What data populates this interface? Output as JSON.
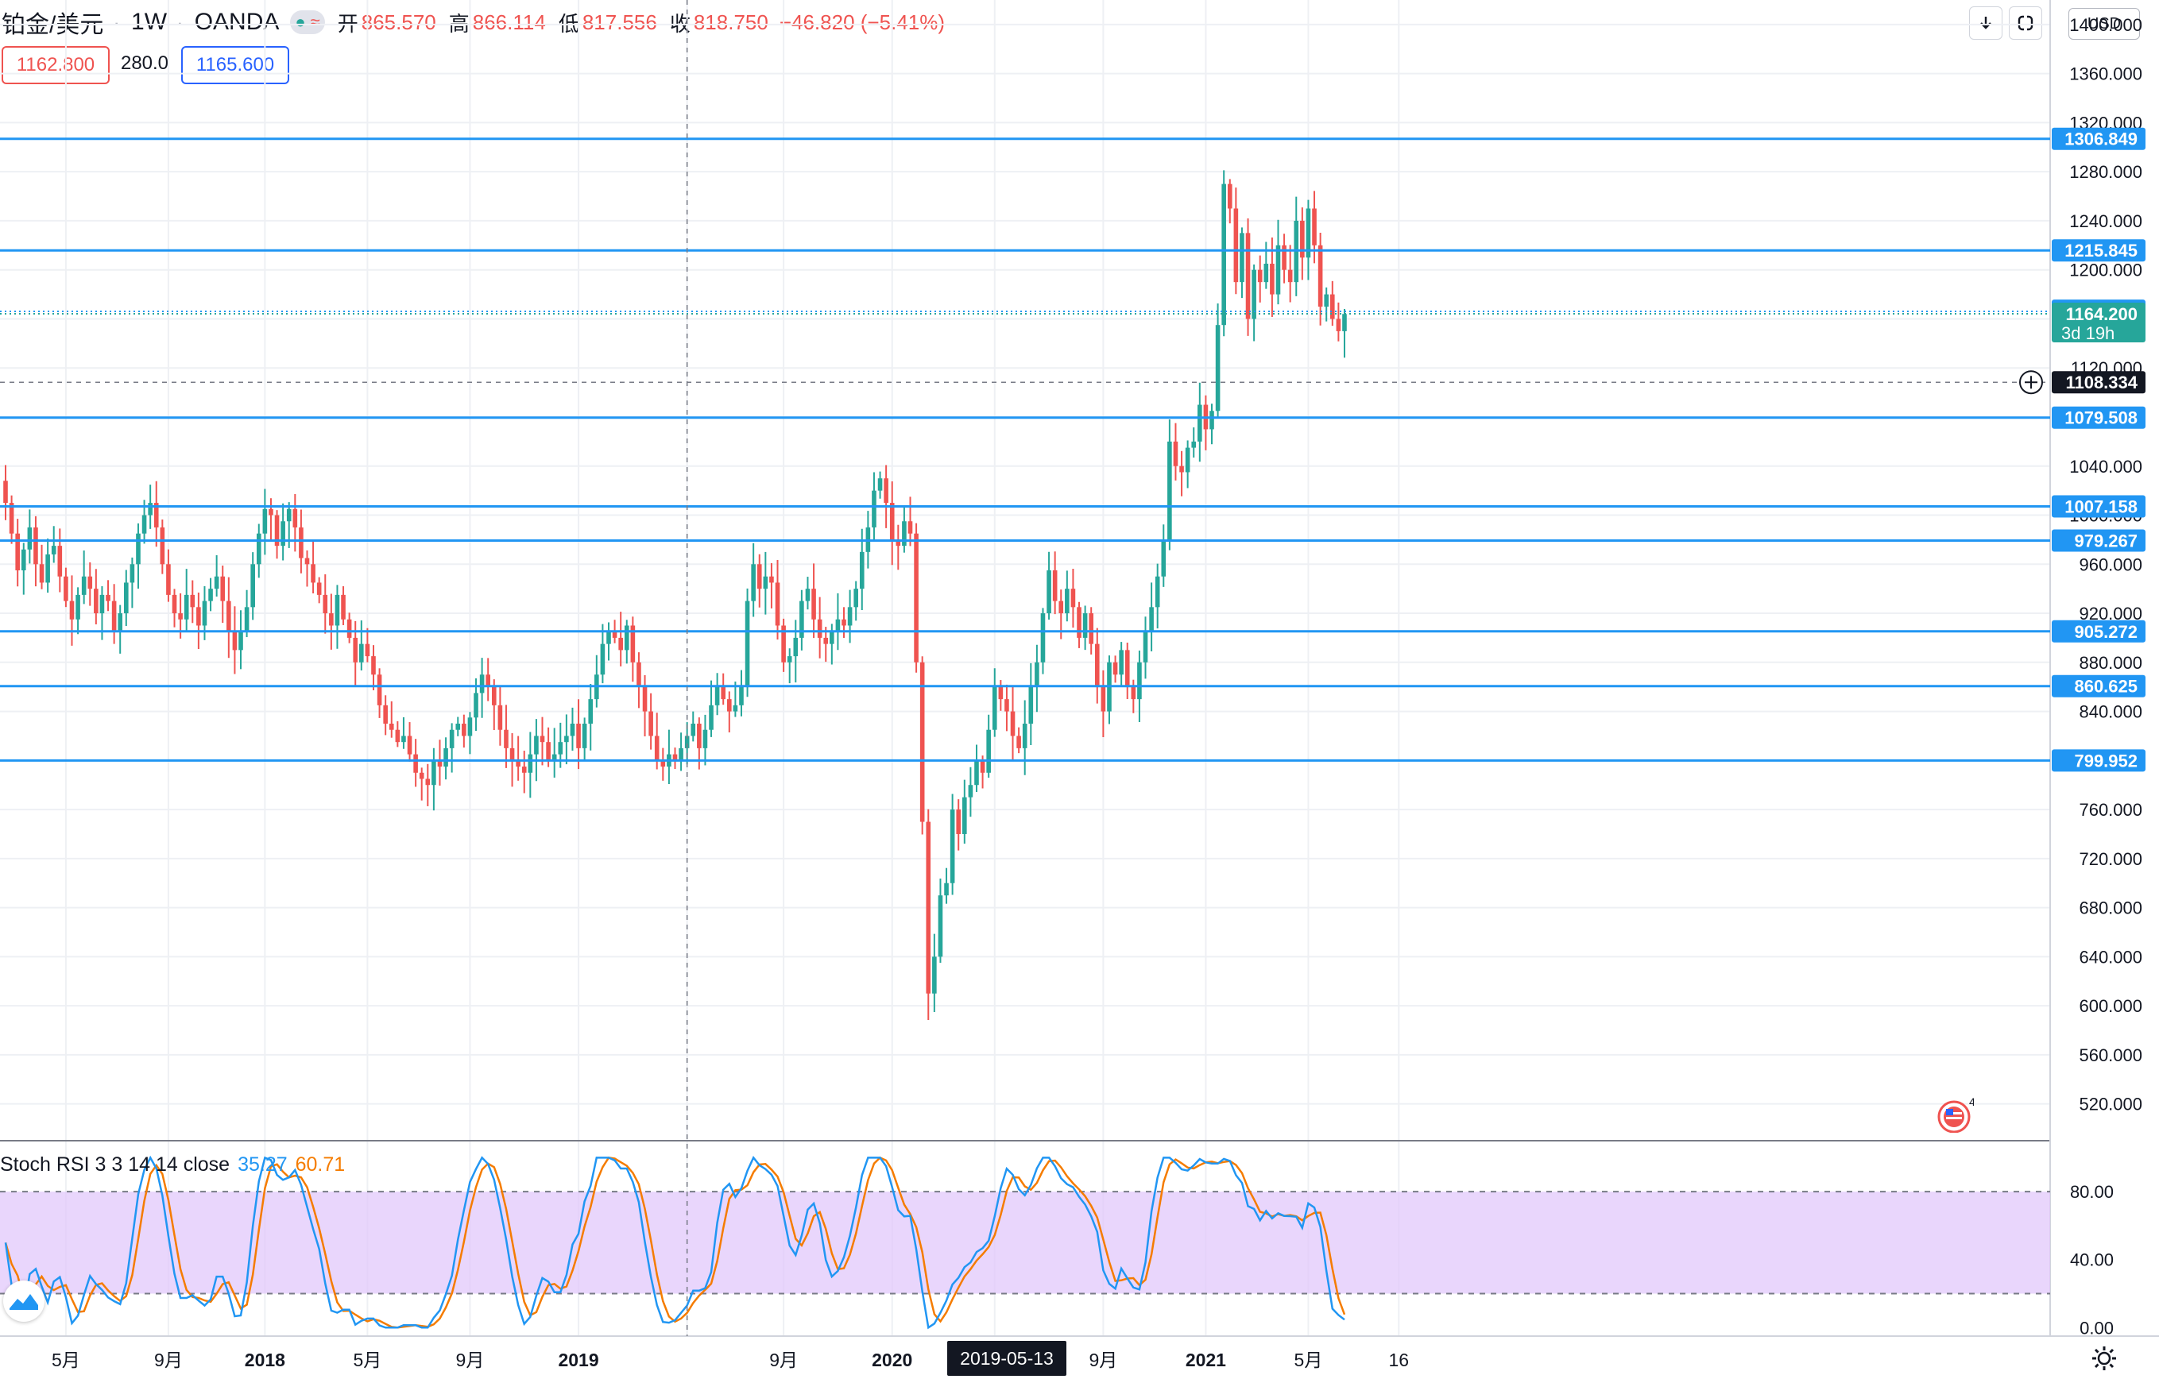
{
  "legend": {
    "symbol": "铂金/美元",
    "interval": "1W",
    "broker": "OANDA",
    "tag_icons": [
      "circle-icon",
      "wave-icon"
    ],
    "ohlc": [
      {
        "key": "开",
        "value": "865.570"
      },
      {
        "key": "高",
        "value": "866.114"
      },
      {
        "key": "低",
        "value": "817.556"
      },
      {
        "key": "收",
        "value": "818.750"
      }
    ],
    "change": "−46.820 (−5.41%)",
    "bid": "1162.800",
    "spread": "280.0",
    "ask": "1165.600"
  },
  "toolbar": {
    "download_icon": "arrow-down-icon",
    "fullscreen_icon": "fullscreen-icon",
    "currency": "USD"
  },
  "colors": {
    "up": "#26a69a",
    "down": "#ef5350",
    "hline": "#2196f3",
    "stoch_k": "#2196f3",
    "stoch_d": "#f57c00",
    "band": "#e1c8fb",
    "last": "#26a69a"
  },
  "chart_data": [
    {
      "type": "candlestick",
      "title": "铂金/美元 · 1W · OANDA",
      "ylim": [
        490,
        1420
      ],
      "y_ticks": [
        "520.000",
        "560.000",
        "600.000",
        "640.000",
        "680.000",
        "720.000",
        "760.000",
        "800.000",
        "840.000",
        "880.000",
        "920.000",
        "960.000",
        "1000.000",
        "1040.000",
        "1080.000",
        "1120.000",
        "1160.000",
        "1200.000",
        "1240.000",
        "1280.000",
        "1320.000",
        "1360.000",
        "1400.000"
      ],
      "x_ticks": [
        {
          "label": "5月",
          "week": 10
        },
        {
          "label": "9月",
          "week": 27
        },
        {
          "label": "2018",
          "week": 43
        },
        {
          "label": "5月",
          "week": 60
        },
        {
          "label": "9月",
          "week": 77
        },
        {
          "label": "2019",
          "week": 95
        },
        {
          "label": "2019-05-13",
          "week": 113,
          "crosshair": true
        },
        {
          "label": "9月",
          "week": 129
        },
        {
          "label": "2020",
          "week": 147
        },
        {
          "label": "5月",
          "week": 164
        },
        {
          "label": "9月",
          "week": 182
        },
        {
          "label": "2021",
          "week": 199
        },
        {
          "label": "5月",
          "week": 216
        },
        {
          "label": "16",
          "week": 231
        }
      ],
      "horizontal_levels": [
        {
          "value": "1306.849"
        },
        {
          "value": "1215.845"
        },
        {
          "value": "1079.508"
        },
        {
          "value": "1007.158"
        },
        {
          "value": "979.267"
        },
        {
          "value": "905.272"
        },
        {
          "value": "860.625"
        },
        {
          "value": "799.952"
        }
      ],
      "marker_levels": [
        {
          "value": "1166.731",
          "style": "blue"
        },
        {
          "value": "1164.200",
          "style": "last",
          "countdown": "3d 19h"
        },
        {
          "value": "1108.334",
          "style": "crosshair"
        }
      ],
      "last_price": 1164.2,
      "crosshair_price": 1108.334,
      "closes": [
        1010,
        985,
        955,
        972,
        990,
        960,
        945,
        968,
        975,
        950,
        930,
        915,
        935,
        950,
        940,
        920,
        935,
        930,
        905,
        920,
        945,
        960,
        985,
        1000,
        1010,
        990,
        960,
        935,
        920,
        915,
        935,
        925,
        910,
        930,
        940,
        950,
        930,
        905,
        890,
        905,
        925,
        960,
        985,
        1005,
        1000,
        975,
        995,
        1005,
        990,
        965,
        960,
        945,
        935,
        920,
        910,
        935,
        915,
        900,
        880,
        895,
        885,
        870,
        845,
        830,
        825,
        815,
        820,
        805,
        790,
        785,
        780,
        800,
        795,
        810,
        825,
        830,
        820,
        835,
        855,
        870,
        860,
        845,
        825,
        810,
        800,
        795,
        790,
        805,
        820,
        815,
        800,
        805,
        815,
        820,
        830,
        810,
        830,
        850,
        870,
        895,
        905,
        900,
        890,
        910,
        880,
        860,
        840,
        820,
        800,
        795,
        805,
        800,
        810,
        820,
        830,
        810,
        825,
        845,
        860,
        850,
        840,
        845,
        860,
        930,
        960,
        940,
        950,
        945,
        910,
        880,
        885,
        900,
        930,
        940,
        915,
        900,
        895,
        905,
        915,
        910,
        925,
        940,
        970,
        990,
        1020,
        1030,
        1010,
        980,
        975,
        995,
        985,
        880,
        750,
        610,
        640,
        690,
        700,
        760,
        740,
        770,
        780,
        800,
        790,
        825,
        860,
        850,
        840,
        820,
        810,
        830,
        860,
        880,
        920,
        955,
        930,
        920,
        940,
        925,
        900,
        920,
        895,
        860,
        840,
        880,
        870,
        890,
        860,
        850,
        880,
        905,
        925,
        950,
        980,
        1060,
        1040,
        1035,
        1055,
        1060,
        1090,
        1070,
        1085,
        1155,
        1270,
        1250,
        1190,
        1230,
        1160,
        1200,
        1190,
        1205,
        1180,
        1220,
        1200,
        1190,
        1240,
        1210,
        1250,
        1220,
        1170,
        1180,
        1160,
        1150,
        1164
      ],
      "stoch_rsi": {
        "name": "Stoch RSI 3 3 14 14 close",
        "k_last": "35.27",
        "d_last": "60.71",
        "ylim": [
          -5,
          110
        ],
        "y_ticks": [
          "0.00",
          "40.00",
          "80.00"
        ],
        "band": [
          20,
          80
        ]
      }
    }
  ],
  "footer": {
    "logo_icon": "tradingview-logo-icon",
    "settings_icon": "gear-icon",
    "flag_icon": "us-flag-event-icon",
    "flag_count": "4"
  }
}
